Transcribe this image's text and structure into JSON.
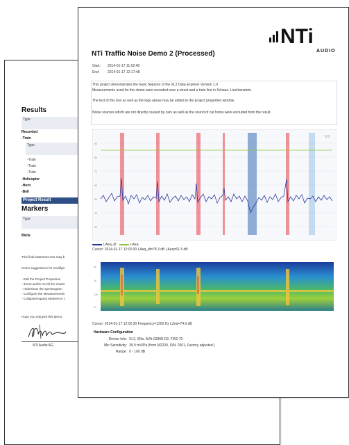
{
  "back_page": {
    "results_title": "Results",
    "type_header": "Type",
    "recorded": "Recorded",
    "train_group": "-Train",
    "train_type_header": "Type",
    "train_items": [
      "-Train",
      "-Train",
      "-Train"
    ],
    "helicopter": "-Helicopter",
    "horn": "-Horn",
    "bell": "-Bell",
    "project_result": "Project Result",
    "markers_title": "Markers",
    "markers_type_header": "Type",
    "birds": "Birds",
    "final_statement": "This final statement text may b",
    "suggestions": "Some suggestions for modifyin",
    "suggestion_items": [
      "- Edit the Project Properties",
      "- Zoom and/or scroll the charts",
      "- Hide/show the spectrogram",
      "- Configure the Measurements",
      "- Collapse/expand Markers in t"
    ],
    "closing": "Hope you enjoyed this demo.",
    "company": "NTi Audio AG"
  },
  "front_page": {
    "logo_text": "NTi",
    "logo_subtext": "AUDIO",
    "title": "NTi Traffic Noise Demo 2 (Processed)",
    "start_label": "Start:",
    "start_value": "2014-01-17 11:52:48",
    "end_label": "End:",
    "end_value": "2014-01-17 12:17:48",
    "description": [
      "This project demonstrates the basic features of the XL2 Data Explorer Version 1.0",
      "Measurements used for this demo were recorded near a street and a train line in Schaan, Liechtenstein.",
      "The text of this box as well as the logo above may be edited in the project properties window.",
      "Noise sources which are not directly caused by cars as well as the sound of car horns were excluded from the result."
    ],
    "legend_1": "LAeq_dt",
    "legend_2": "LAeq",
    "cursor_1": "Cursor: 2014-01-17 12:02:30 LAeq_dt=78.3 dB LAeq=61.5 dB",
    "cursor_2": "Cursor: 2014-01-17 12:02:30 Frequency=1250 Hz LZeq=74.9 dB",
    "hw_title": "Hardware Configuration",
    "hw_rows": [
      {
        "label": "Device Info:",
        "value": "XL2, SNo. A2A-02868-D2, FW2.70"
      },
      {
        "label": "Mic Sensitivity:",
        "value": "39.9 mV/Pa (from M2230, S/N: 2601, Factory adjusted )"
      },
      {
        "label": "Range:",
        "value": "0 - 100 dB"
      }
    ],
    "colors": {
      "laeq_dt": "#2b3a9a",
      "laeq": "#8dc63f",
      "marker_red": "#e8404a",
      "marker_blue": "#5a8fd0",
      "project_bar": "#2d4f86"
    }
  }
}
